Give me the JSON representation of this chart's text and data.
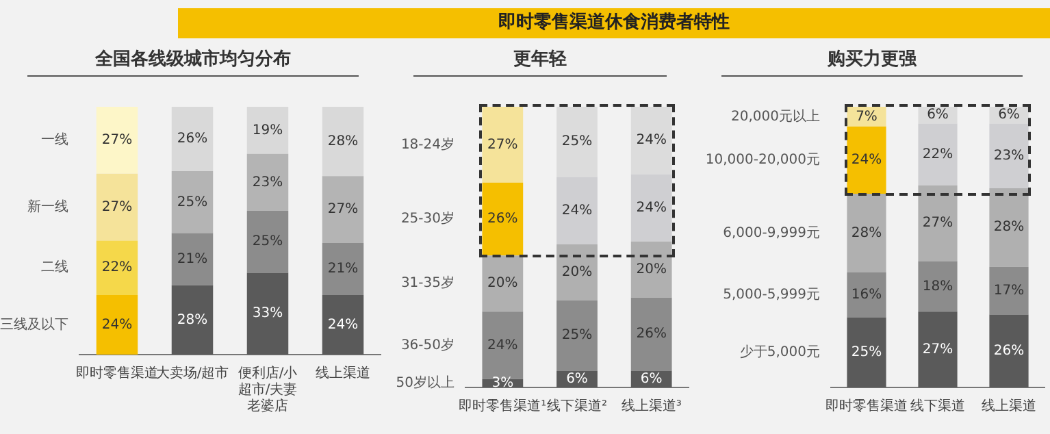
{
  "chart_data": [
    {
      "type": "bar",
      "stacked": true,
      "title": "全国各线级城市均匀分布",
      "categories": [
        "即时零售渠道",
        "大卖场/超市",
        "便利店/小超市/夫妻老婆店",
        "线上渠道"
      ],
      "ylim": [
        0,
        100
      ],
      "tick_labels": "x",
      "series": [
        {
          "name": "三线及以下",
          "colors": [
            "#f5bf00",
            "#5a5a5a",
            "#5a5a5a",
            "#5a5a5a"
          ],
          "values": [
            24,
            28,
            33,
            24
          ],
          "value_labels": [
            "24%",
            "28%",
            "33%",
            "24%"
          ]
        },
        {
          "name": "二线",
          "colors": [
            "#f5d84a",
            "#8c8c8c",
            "#8c8c8c",
            "#8c8c8c"
          ],
          "values": [
            22,
            21,
            25,
            21
          ],
          "value_labels": [
            "22%",
            "21%",
            "25%",
            "21%"
          ]
        },
        {
          "name": "新一线",
          "colors": [
            "#f5e39a",
            "#b4b4b4",
            "#b4b4b4",
            "#b4b4b4"
          ],
          "values": [
            27,
            25,
            23,
            27
          ],
          "value_labels": [
            "27%",
            "25%",
            "23%",
            "27%"
          ]
        },
        {
          "name": "一线",
          "colors": [
            "#fdf6c8",
            "#d9d9d9",
            "#d9d9d9",
            "#d9d9d9"
          ],
          "values": [
            27,
            26,
            19,
            28
          ],
          "value_labels": [
            "27%",
            "26%",
            "19%",
            "28%"
          ]
        }
      ]
    },
    {
      "type": "bar",
      "stacked": true,
      "title": "更年轻",
      "annotations": [
        "即时零售渠道休食消费者特性"
      ],
      "categories": [
        "即时零售渠道¹",
        "线下渠道²",
        "线上渠道³"
      ],
      "ylim": [
        0,
        100
      ],
      "tick_labels": "x",
      "series": [
        {
          "name": "50岁以上",
          "colors": [
            "#5a5a5a",
            "#5a5a5a",
            "#5a5a5a"
          ],
          "values": [
            3,
            6,
            6
          ],
          "value_labels": [
            "3%",
            "6%",
            "6%"
          ]
        },
        {
          "name": "36-50岁",
          "colors": [
            "#8c8c8c",
            "#8c8c8c",
            "#8c8c8c"
          ],
          "values": [
            24,
            25,
            26
          ],
          "value_labels": [
            "24%",
            "25%",
            "26%"
          ]
        },
        {
          "name": "31-35岁",
          "colors": [
            "#b0b0b0",
            "#b0b0b0",
            "#b0b0b0"
          ],
          "values": [
            20,
            20,
            20
          ],
          "value_labels": [
            "20%",
            "20%",
            "20%"
          ]
        },
        {
          "name": "25-30岁",
          "colors": [
            "#f5bf00",
            "#cfcfd2",
            "#cfcfd2"
          ],
          "values": [
            26,
            24,
            24
          ],
          "value_labels": [
            "26%",
            "24%",
            "24%"
          ]
        },
        {
          "name": "18-24岁",
          "colors": [
            "#f5e39a",
            "#dcdcdc",
            "#dcdcdc"
          ],
          "values": [
            27,
            25,
            24
          ],
          "value_labels": [
            "27%",
            "25%",
            "24%"
          ]
        }
      ]
    },
    {
      "type": "bar",
      "stacked": true,
      "title": "购买力更强",
      "categories": [
        "即时零售渠道",
        "线下渠道",
        "线上渠道"
      ],
      "ylim": [
        0,
        100
      ],
      "tick_labels": "x",
      "series": [
        {
          "name": "少于5,000元",
          "colors": [
            "#5a5a5a",
            "#5a5a5a",
            "#5a5a5a"
          ],
          "values": [
            25,
            27,
            26
          ],
          "value_labels": [
            "25%",
            "27%",
            "26%"
          ]
        },
        {
          "name": "5,000-5,999元",
          "colors": [
            "#8c8c8c",
            "#8c8c8c",
            "#8c8c8c"
          ],
          "values": [
            16,
            18,
            17
          ],
          "value_labels": [
            "16%",
            "18%",
            "17%"
          ]
        },
        {
          "name": "6,000-9,999元",
          "colors": [
            "#b0b0b0",
            "#b0b0b0",
            "#b0b0b0"
          ],
          "values": [
            28,
            27,
            28
          ],
          "value_labels": [
            "28%",
            "27%",
            "28%"
          ]
        },
        {
          "name": "10,000-20,000元",
          "colors": [
            "#f5bf00",
            "#cfcfd2",
            "#cfcfd2"
          ],
          "values": [
            24,
            22,
            23
          ],
          "value_labels": [
            "24%",
            "22%",
            "23%"
          ]
        },
        {
          "name": "20,000元以上",
          "colors": [
            "#f5e39a",
            "#dcdcdc",
            "#dcdcdc"
          ],
          "values": [
            7,
            6,
            6
          ],
          "value_labels": [
            "7%",
            "6%",
            "6%"
          ]
        }
      ]
    }
  ]
}
